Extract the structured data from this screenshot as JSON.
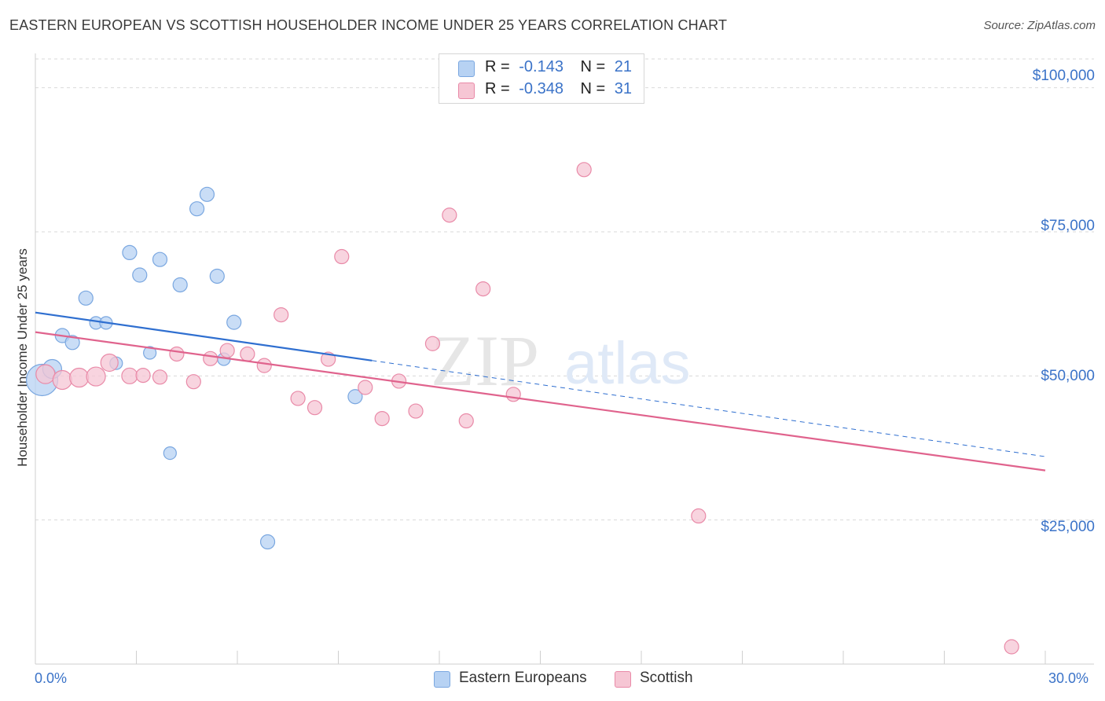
{
  "header": {
    "title": "EASTERN EUROPEAN VS SCOTTISH HOUSEHOLDER INCOME UNDER 25 YEARS CORRELATION CHART",
    "source": "Source: ZipAtlas.com"
  },
  "colors": {
    "blue_fill": "#b7d2f3",
    "blue_stroke": "#7aa7e0",
    "blue_line": "#2f6fd0",
    "pink_fill": "#f6c6d4",
    "pink_stroke": "#e98aa8",
    "pink_line": "#e0638d",
    "grid": "#d9d9d9",
    "tick_text": "#3b73c8"
  },
  "legend_top": {
    "rows": [
      {
        "r_label": "R =",
        "r_value": "-0.143",
        "n_label": "N =",
        "n_value": "21"
      },
      {
        "r_label": "R =",
        "r_value": "-0.348",
        "n_label": "N =",
        "n_value": "31"
      }
    ]
  },
  "legend_bottom": {
    "items": [
      "Eastern Europeans",
      "Scottish"
    ]
  },
  "watermark": {
    "zip": "ZIP",
    "atlas": "atlas"
  },
  "chart_data": {
    "type": "scatter",
    "title": "EASTERN EUROPEAN VS SCOTTISH HOUSEHOLDER INCOME UNDER 25 YEARS CORRELATION CHART",
    "xlabel": "",
    "ylabel": "Householder Income Under 25 years",
    "xlim": [
      0,
      30
    ],
    "ylim": [
      0,
      105000
    ],
    "x_tick_labels": [
      "0.0%",
      "30.0%"
    ],
    "y_ticks": [
      25000,
      50000,
      75000,
      100000
    ],
    "y_tick_labels": [
      "$25,000",
      "$50,000",
      "$75,000",
      "$100,000"
    ],
    "grid": true,
    "legend_position": "top-center",
    "series": [
      {
        "name": "Eastern Europeans",
        "r": -0.143,
        "n": 21,
        "trend": {
          "x0": 0,
          "y0": 61000,
          "x1": 30,
          "y1": 36000,
          "solid_until_x": 10
        },
        "points": [
          {
            "x": 0.2,
            "y": 49300,
            "s": 20
          },
          {
            "x": 0.5,
            "y": 51200,
            "s": 12
          },
          {
            "x": 0.8,
            "y": 57000,
            "s": 9
          },
          {
            "x": 1.1,
            "y": 55800,
            "s": 9
          },
          {
            "x": 1.5,
            "y": 63500,
            "s": 9
          },
          {
            "x": 1.8,
            "y": 59200,
            "s": 8
          },
          {
            "x": 2.1,
            "y": 59200,
            "s": 8
          },
          {
            "x": 2.4,
            "y": 52200,
            "s": 8
          },
          {
            "x": 2.8,
            "y": 71400,
            "s": 9
          },
          {
            "x": 3.1,
            "y": 67500,
            "s": 9
          },
          {
            "x": 3.4,
            "y": 54000,
            "s": 8
          },
          {
            "x": 3.7,
            "y": 70200,
            "s": 9
          },
          {
            "x": 4.0,
            "y": 36600,
            "s": 8
          },
          {
            "x": 4.3,
            "y": 65800,
            "s": 9
          },
          {
            "x": 4.8,
            "y": 79000,
            "s": 9
          },
          {
            "x": 5.1,
            "y": 81500,
            "s": 9
          },
          {
            "x": 5.4,
            "y": 67300,
            "s": 9
          },
          {
            "x": 5.6,
            "y": 52900,
            "s": 8
          },
          {
            "x": 5.9,
            "y": 59300,
            "s": 9
          },
          {
            "x": 6.9,
            "y": 21200,
            "s": 9
          },
          {
            "x": 9.5,
            "y": 46400,
            "s": 9
          }
        ]
      },
      {
        "name": "Scottish",
        "r": -0.348,
        "n": 31,
        "trend": {
          "x0": 0,
          "y0": 57600,
          "x1": 30,
          "y1": 33600,
          "solid_until_x": 30
        },
        "points": [
          {
            "x": 0.3,
            "y": 50300,
            "s": 12
          },
          {
            "x": 0.8,
            "y": 49300,
            "s": 12
          },
          {
            "x": 1.3,
            "y": 49700,
            "s": 12
          },
          {
            "x": 1.8,
            "y": 49900,
            "s": 12
          },
          {
            "x": 2.2,
            "y": 52300,
            "s": 11
          },
          {
            "x": 2.8,
            "y": 50000,
            "s": 10
          },
          {
            "x": 3.2,
            "y": 50100,
            "s": 9
          },
          {
            "x": 3.7,
            "y": 49800,
            "s": 9
          },
          {
            "x": 4.2,
            "y": 53800,
            "s": 9
          },
          {
            "x": 4.7,
            "y": 49000,
            "s": 9
          },
          {
            "x": 5.2,
            "y": 53000,
            "s": 9
          },
          {
            "x": 5.7,
            "y": 54400,
            "s": 9
          },
          {
            "x": 6.3,
            "y": 53800,
            "s": 9
          },
          {
            "x": 6.8,
            "y": 51800,
            "s": 9
          },
          {
            "x": 7.3,
            "y": 60600,
            "s": 9
          },
          {
            "x": 7.8,
            "y": 46100,
            "s": 9
          },
          {
            "x": 8.3,
            "y": 44500,
            "s": 9
          },
          {
            "x": 8.7,
            "y": 52900,
            "s": 9
          },
          {
            "x": 9.1,
            "y": 70700,
            "s": 9
          },
          {
            "x": 9.8,
            "y": 48000,
            "s": 9
          },
          {
            "x": 10.3,
            "y": 42600,
            "s": 9
          },
          {
            "x": 10.8,
            "y": 49100,
            "s": 9
          },
          {
            "x": 11.3,
            "y": 43900,
            "s": 9
          },
          {
            "x": 11.8,
            "y": 55600,
            "s": 9
          },
          {
            "x": 12.3,
            "y": 77900,
            "s": 9
          },
          {
            "x": 12.8,
            "y": 42200,
            "s": 9
          },
          {
            "x": 13.3,
            "y": 65100,
            "s": 9
          },
          {
            "x": 14.2,
            "y": 46800,
            "s": 9
          },
          {
            "x": 16.3,
            "y": 85800,
            "s": 9
          },
          {
            "x": 19.7,
            "y": 25700,
            "s": 9
          },
          {
            "x": 29.0,
            "y": 3000,
            "s": 9
          }
        ]
      }
    ]
  }
}
